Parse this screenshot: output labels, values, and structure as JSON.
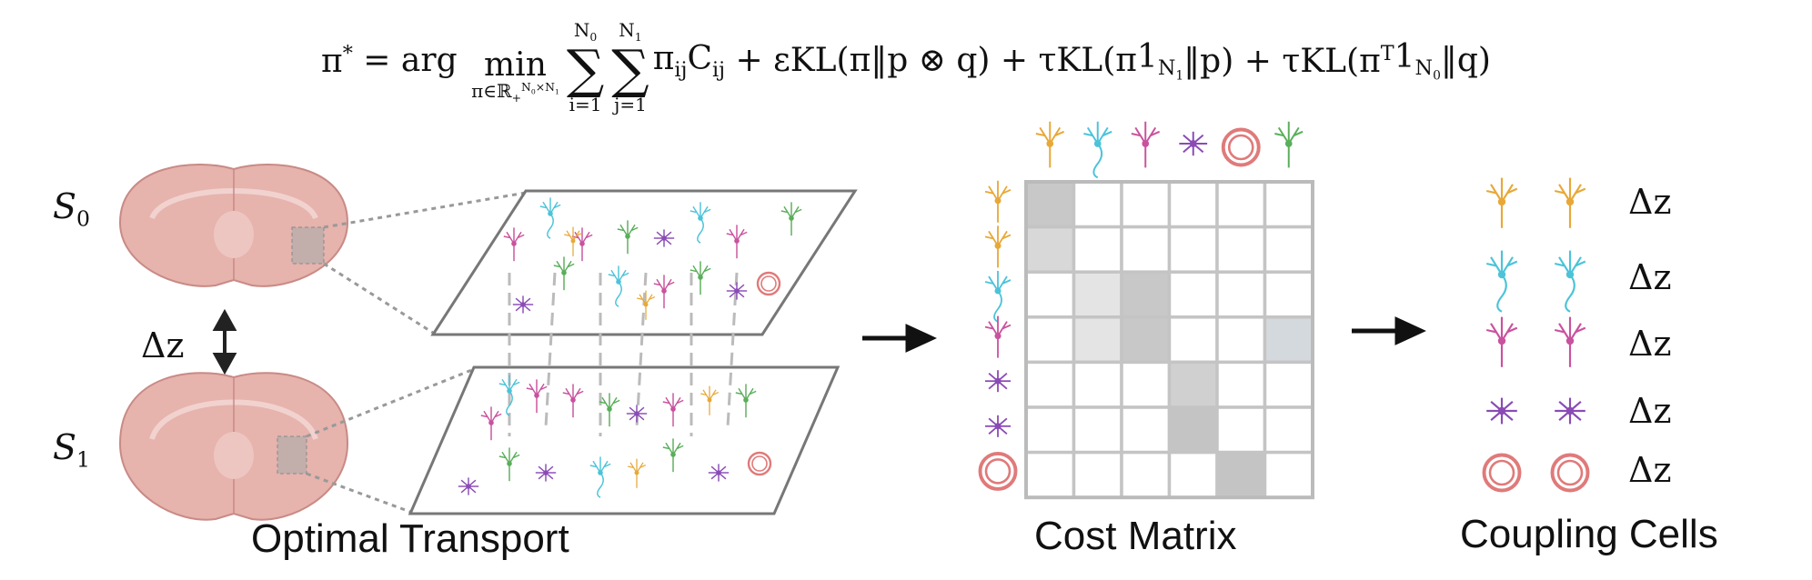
{
  "equation": [
    {
      "text": "π",
      "sup": "*"
    },
    {
      "text": " = arg "
    },
    {
      "text": "min",
      "under": {
        "text": "π∈ℝ",
        "sub": "+",
        "sup": {
          "text": "N",
          "sub": "0",
          "sup2": "×N",
          "tail": {
            "text": "",
            "sub": "1"
          }
        }
      }
    },
    {
      "text": "∑",
      "over": {
        "text": "N",
        "sub": "0"
      },
      "under": "i=1"
    },
    {
      "text": "∑",
      "over": {
        "text": "N",
        "sub": "1"
      },
      "under": "j=1"
    },
    {
      "text": "π",
      "sub": "ij"
    },
    {
      "text": "C",
      "sub": "ij"
    },
    {
      "text": " + εKL(π‖p ⊗ q) + τKL(π"
    },
    {
      "text": "1",
      "sub": {
        "text": "N",
        "sub": "1"
      }
    },
    {
      "text": "‖p) + τKL(π",
      "sup": "T"
    },
    {
      "text": "1",
      "sub": {
        "text": "N",
        "sub": "0"
      }
    },
    {
      "text": "‖q)"
    }
  ],
  "slices": [
    {
      "text": "S",
      "sub": "0"
    },
    {
      "text": "S",
      "sub": "1"
    }
  ],
  "slice_gap": "Δz",
  "panels": {
    "transport": "Optimal Transport",
    "matrix": "Cost Matrix",
    "coupling": "Coupling Cells"
  },
  "coupling_gaps": [
    "Δz",
    "Δz",
    "Δz",
    "Δz",
    "Δz"
  ]
}
